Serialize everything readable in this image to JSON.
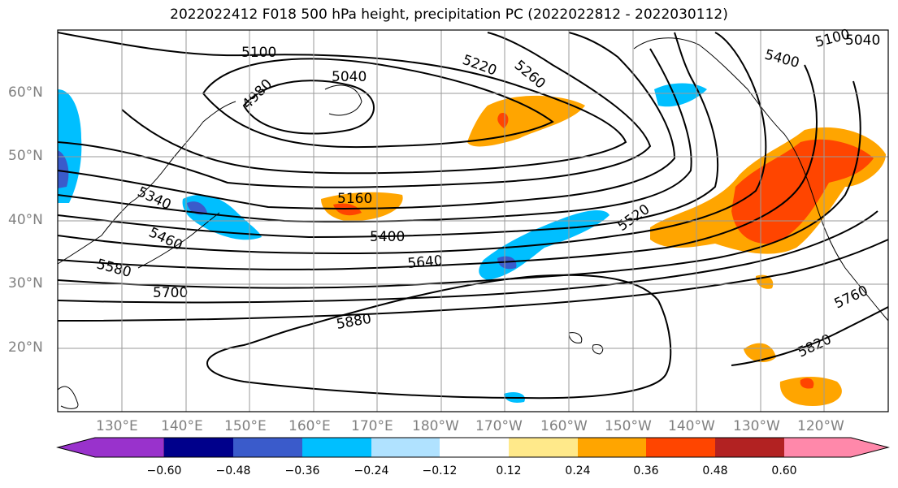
{
  "title": "2022022412 F018 500 hPa height, precipitation PC (2022022812 - 2022030112)",
  "map": {
    "lat_labels": [
      "60°N",
      "50°N",
      "40°N",
      "30°N",
      "20°N"
    ],
    "lon_labels": [
      "130°E",
      "140°E",
      "150°E",
      "160°E",
      "170°E",
      "180°W",
      "170°W",
      "160°W",
      "150°W",
      "140°W",
      "130°W",
      "120°W"
    ],
    "contour_labels": [
      "5100",
      "5040",
      "4980",
      "5220",
      "5260",
      "5400",
      "5100",
      "5040",
      "5340",
      "5460",
      "5580",
      "5160",
      "5400",
      "5640",
      "5520",
      "5700",
      "5880",
      "5820",
      "5760"
    ],
    "land_color": "#ffffff",
    "contour_color": "#000000"
  },
  "colorbar": {
    "ticks": [
      "−0.60",
      "−0.48",
      "−0.36",
      "−0.24",
      "−0.12",
      "0.12",
      "0.24",
      "0.36",
      "0.48",
      "0.60"
    ],
    "colors": [
      "#9932CC",
      "#00008B",
      "#3A5BCB",
      "#00BFFF",
      "#B0E2FF",
      "#FFFFFF",
      "#FFE98A",
      "#FFA500",
      "#FF4500",
      "#B22222",
      "#FF88AA"
    ]
  }
}
